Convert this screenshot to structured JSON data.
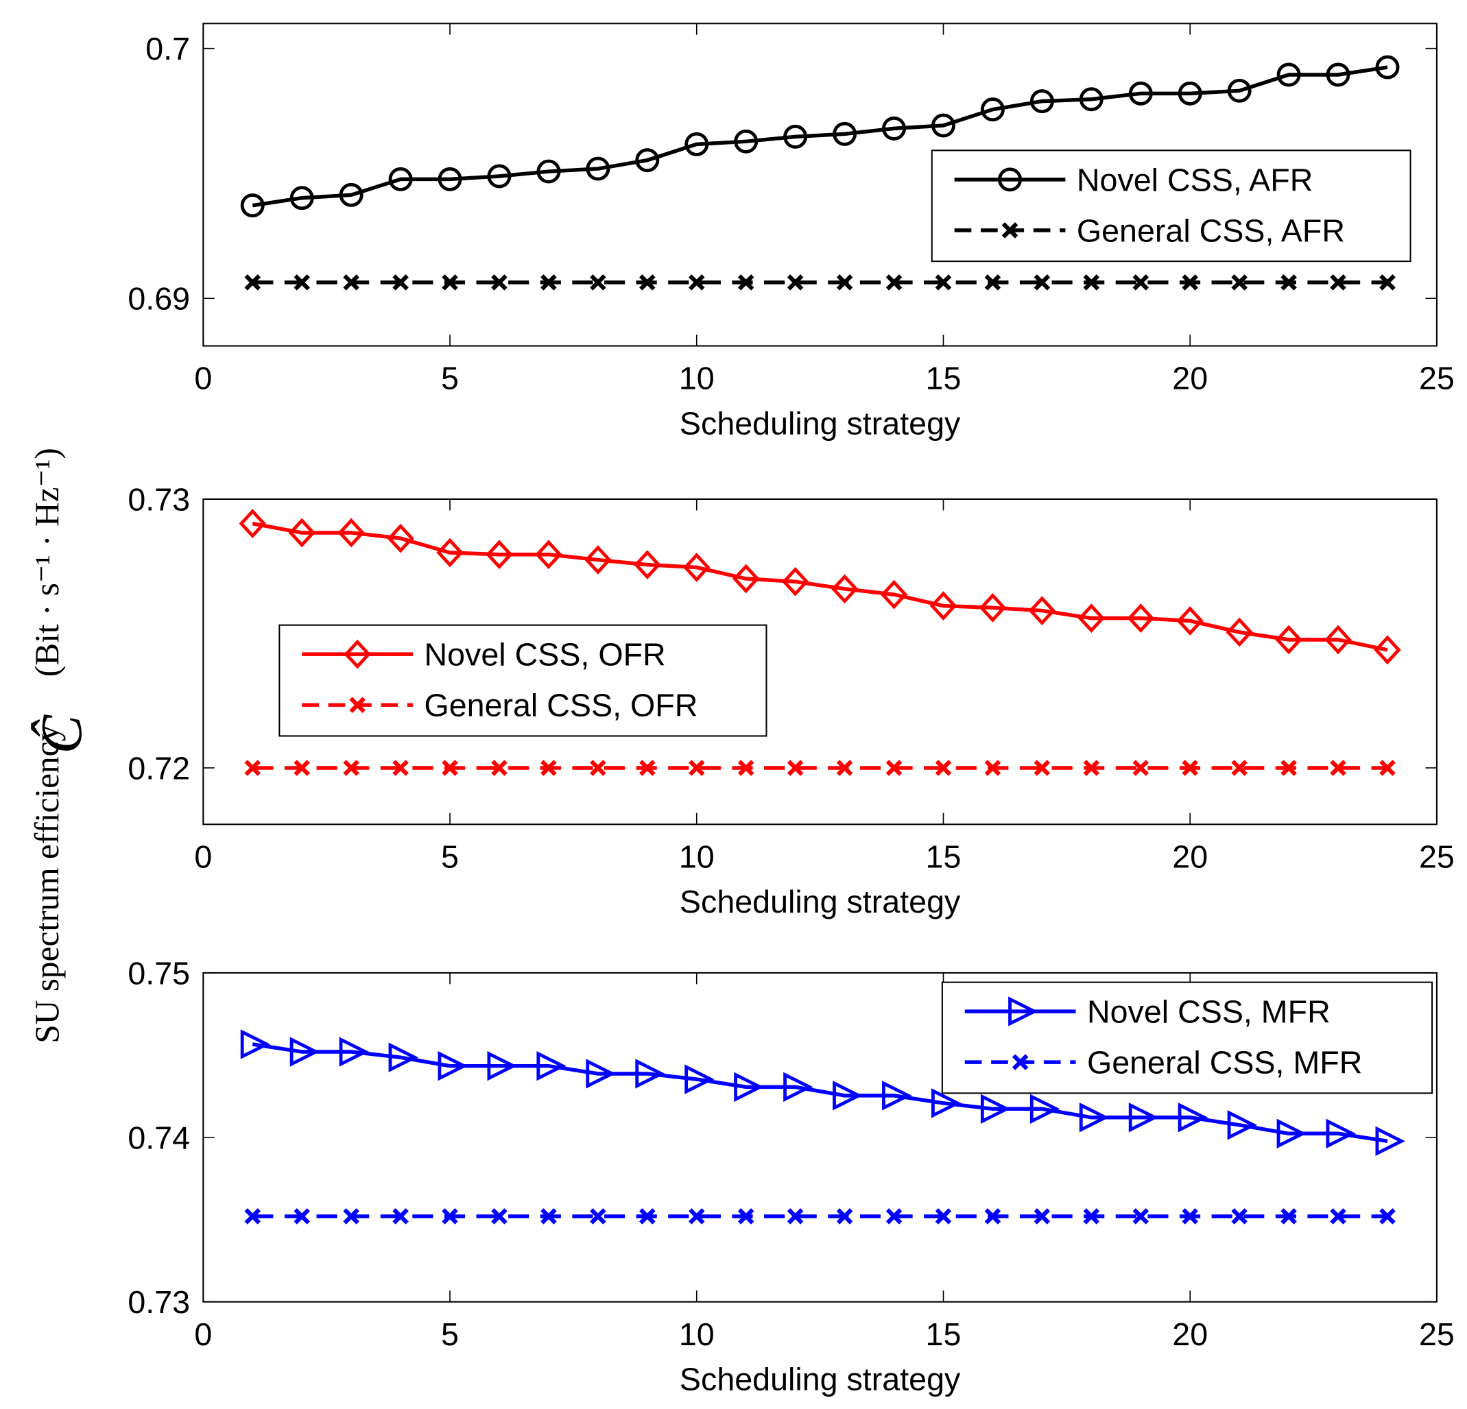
{
  "chart_data": {
    "ylabel": "SU spectrum efficiency",
    "ylabel_symbol": "Ĉ",
    "ylabel_units": "(Bit · s⁻¹ · Hz⁻¹)",
    "subplots": [
      {
        "type": "line",
        "xlabel": "Scheduling strategy",
        "xlim": [
          0,
          25
        ],
        "xticks": [
          0,
          5,
          10,
          15,
          20,
          25
        ],
        "ylim": [
          0.6881,
          0.701
        ],
        "yticks": [
          0.69,
          0.7
        ],
        "ytick_labels": [
          "0.69",
          "0.7"
        ],
        "legend_position": "right-middle",
        "x": [
          1,
          2,
          3,
          4,
          5,
          6,
          7,
          8,
          9,
          10,
          11,
          12,
          13,
          14,
          15,
          16,
          17,
          18,
          19,
          20,
          21,
          22,
          23,
          24
        ],
        "series": [
          {
            "name": "Novel CSS, AFR",
            "color": "#000000",
            "style": "solid",
            "marker": "circle",
            "values": [
              0.69372,
              0.69402,
              0.69414,
              0.69477,
              0.69477,
              0.69489,
              0.69508,
              0.69519,
              0.69553,
              0.69617,
              0.69628,
              0.69647,
              0.69658,
              0.6968,
              0.69692,
              0.69756,
              0.69789,
              0.69797,
              0.6982,
              0.6982,
              0.69831,
              0.69895,
              0.69895,
              0.69925
            ]
          },
          {
            "name": "General CSS,  AFR",
            "color": "#000000",
            "style": "dashed",
            "marker": "x",
            "values": [
              0.69064,
              0.69064,
              0.69064,
              0.69064,
              0.69064,
              0.69064,
              0.69064,
              0.69064,
              0.69064,
              0.69064,
              0.69064,
              0.69064,
              0.69064,
              0.69064,
              0.69064,
              0.69064,
              0.69064,
              0.69064,
              0.69064,
              0.69064,
              0.69064,
              0.69064,
              0.69064,
              0.69064
            ]
          }
        ]
      },
      {
        "type": "line",
        "xlabel": "Scheduling strategy",
        "xlim": [
          0,
          25
        ],
        "xticks": [
          0,
          5,
          10,
          15,
          20,
          25
        ],
        "ylim": [
          0.7179,
          0.73
        ],
        "yticks": [
          0.72,
          0.73
        ],
        "ytick_labels": [
          "0.72",
          "0.73"
        ],
        "legend_position": "left-middle",
        "x": [
          1,
          2,
          3,
          4,
          5,
          6,
          7,
          8,
          9,
          10,
          11,
          12,
          13,
          14,
          15,
          16,
          17,
          18,
          19,
          20,
          21,
          22,
          23,
          24
        ],
        "series": [
          {
            "name": "Novel CSS, OFR",
            "color": "#ff0000",
            "style": "solid",
            "marker": "diamond",
            "values": [
              0.72909,
              0.72875,
              0.72875,
              0.72854,
              0.72801,
              0.72794,
              0.72794,
              0.72774,
              0.72756,
              0.72746,
              0.72704,
              0.72693,
              0.72666,
              0.72645,
              0.72603,
              0.72596,
              0.72585,
              0.72557,
              0.72557,
              0.72547,
              0.72505,
              0.72477,
              0.72477,
              0.72439
            ]
          },
          {
            "name": "General CSS,  OFR",
            "color": "#ff0000",
            "style": "dashed",
            "marker": "x",
            "values": [
              0.72,
              0.72,
              0.72,
              0.72,
              0.72,
              0.72,
              0.72,
              0.72,
              0.72,
              0.72,
              0.72,
              0.72,
              0.72,
              0.72,
              0.72,
              0.72,
              0.72,
              0.72,
              0.72,
              0.72,
              0.72,
              0.72,
              0.72,
              0.72
            ]
          }
        ]
      },
      {
        "type": "line",
        "xlabel": "Scheduling strategy",
        "xlim": [
          0,
          25
        ],
        "xticks": [
          0,
          5,
          10,
          15,
          20,
          25
        ],
        "ylim": [
          0.73,
          0.75
        ],
        "yticks": [
          0.73,
          0.74,
          0.75
        ],
        "ytick_labels": [
          "0.73",
          "0.74",
          "0.75"
        ],
        "legend_position": "top-right",
        "x": [
          1,
          2,
          3,
          4,
          5,
          6,
          7,
          8,
          9,
          10,
          11,
          12,
          13,
          14,
          15,
          16,
          17,
          18,
          19,
          20,
          21,
          22,
          23,
          24
        ],
        "series": [
          {
            "name": "Novel CSS, MFR",
            "color": "#0000ff",
            "style": "solid",
            "marker": "triangle-right",
            "values": [
              0.74566,
              0.7452,
              0.7452,
              0.74486,
              0.74434,
              0.74434,
              0.74434,
              0.74387,
              0.74387,
              0.74353,
              0.74306,
              0.74306,
              0.74254,
              0.74254,
              0.74208,
              0.74173,
              0.74173,
              0.74121,
              0.74121,
              0.74121,
              0.74075,
              0.74023,
              0.74023,
              0.73977
            ]
          },
          {
            "name": "General CSS,  MFR",
            "color": "#0000ff",
            "style": "dashed",
            "marker": "x",
            "values": [
              0.7352,
              0.7352,
              0.7352,
              0.7352,
              0.7352,
              0.7352,
              0.7352,
              0.7352,
              0.7352,
              0.7352,
              0.7352,
              0.7352,
              0.7352,
              0.7352,
              0.7352,
              0.7352,
              0.7352,
              0.7352,
              0.7352,
              0.7352,
              0.7352,
              0.7352,
              0.7352,
              0.7352
            ]
          }
        ]
      }
    ]
  }
}
